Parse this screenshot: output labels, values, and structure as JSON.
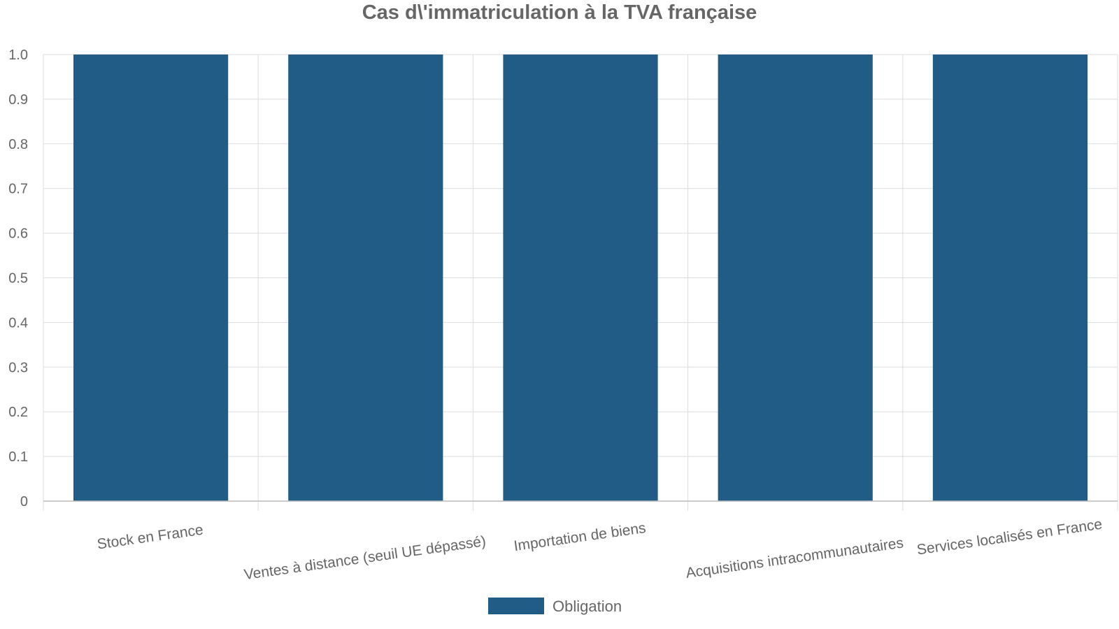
{
  "chart_data": {
    "type": "bar",
    "title": "Cas d\\'immatriculation à la TVA française",
    "xlabel": "",
    "ylabel": "",
    "categories": [
      "Stock en France",
      "Ventes à distance (seuil UE dépassé)",
      "Importation de biens",
      "Acquisitions intracommunautaires",
      "Services localisés en France"
    ],
    "series": [
      {
        "name": "Obligation",
        "values": [
          1,
          1,
          1,
          1,
          1
        ],
        "color": "#205c85"
      }
    ],
    "ylim": [
      0,
      1.0
    ],
    "yticks": [
      "0",
      "0.1",
      "0.2",
      "0.3",
      "0.4",
      "0.5",
      "0.6",
      "0.7",
      "0.8",
      "0.9",
      "1.0"
    ],
    "grid": true,
    "legend_position": "bottom"
  }
}
